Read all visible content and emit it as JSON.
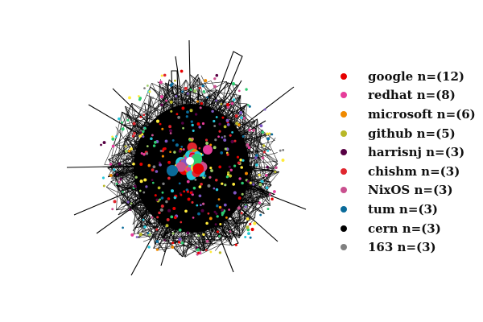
{
  "legend": {
    "items": [
      {
        "label": "google n=(12)",
        "color": "#e60000"
      },
      {
        "label": "redhat n=(8)",
        "color": "#e63c9a"
      },
      {
        "label": "microsoft n=(6)",
        "color": "#f08a00"
      },
      {
        "label": "github n=(5)",
        "color": "#b8b827"
      },
      {
        "label": "harrisnj n=(3)",
        "color": "#560043"
      },
      {
        "label": "chishm n=(3)",
        "color": "#e0262e"
      },
      {
        "label": "NixOS n=(3)",
        "color": "#c9508f"
      },
      {
        "label": "tum n=(3)",
        "color": "#0a6b9a"
      },
      {
        "label": "cern n=(3)",
        "color": "#000000"
      },
      {
        "label": "163 n=(3)",
        "color": "#808080"
      }
    ]
  },
  "network": {
    "node_colors": [
      "#e60000",
      "#e63c9a",
      "#f08a00",
      "#b8b827",
      "#560043",
      "#e0262e",
      "#c9508f",
      "#0a6b9a",
      "#808080",
      "#2ecc71",
      "#26c6da",
      "#7e57c2",
      "#9ccc65",
      "#ffeb3b"
    ],
    "edge_color": "#000000"
  }
}
